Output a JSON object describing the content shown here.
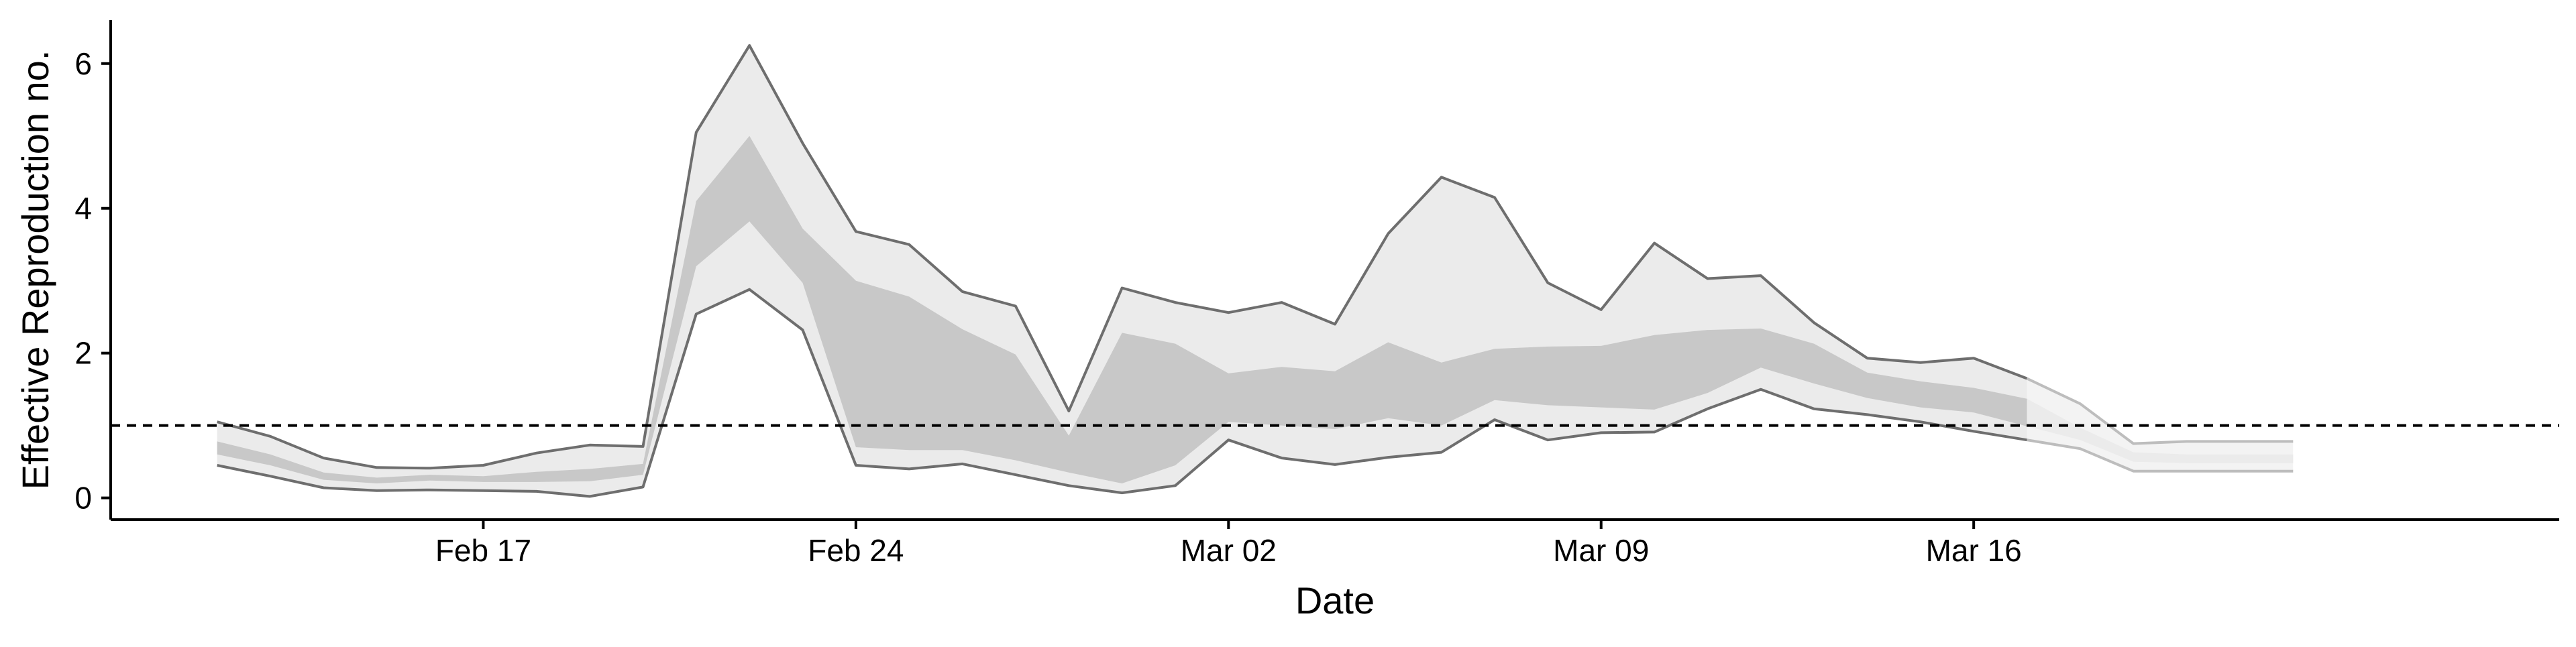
{
  "chart_data": {
    "type": "area",
    "xlabel": "Date",
    "ylabel": "Effective Reproduction no.",
    "x_tick_labels": [
      "Feb 17",
      "Feb 24",
      "Mar 02",
      "Mar 09",
      "Mar 16"
    ],
    "x_tick_dates": [
      "2020-02-17",
      "2020-02-24",
      "2020-03-02",
      "2020-03-09",
      "2020-03-16"
    ],
    "y_tick_labels": [
      "0",
      "2",
      "4",
      "6"
    ],
    "y_ticks": [
      0,
      2,
      4,
      6
    ],
    "xlim": [
      "2020-02-10",
      "2020-03-27"
    ],
    "ylim": [
      -0.3,
      6.6
    ],
    "reference_line": {
      "y": 1,
      "style": "dashed",
      "color": "#000000"
    },
    "grid": false,
    "legend": "none",
    "colors": {
      "outer_band": "#ebebeb",
      "inner_band": "#c8c8c8",
      "bound_line": "#6e6e6e",
      "tail_band": "#f3f3f3",
      "tail_line": "#bdbdbd"
    },
    "dates": [
      "2020-02-12",
      "2020-02-13",
      "2020-02-14",
      "2020-02-15",
      "2020-02-16",
      "2020-02-17",
      "2020-02-18",
      "2020-02-19",
      "2020-02-20",
      "2020-02-21",
      "2020-02-22",
      "2020-02-23",
      "2020-02-24",
      "2020-02-25",
      "2020-02-26",
      "2020-02-27",
      "2020-02-28",
      "2020-02-29",
      "2020-03-01",
      "2020-03-02",
      "2020-03-03",
      "2020-03-04",
      "2020-03-05",
      "2020-03-06",
      "2020-03-07",
      "2020-03-08",
      "2020-03-09",
      "2020-03-10",
      "2020-03-11",
      "2020-03-12",
      "2020-03-13",
      "2020-03-14",
      "2020-03-15",
      "2020-03-16",
      "2020-03-17",
      "2020-03-18",
      "2020-03-19",
      "2020-03-20",
      "2020-03-21",
      "2020-03-22"
    ],
    "series": [
      {
        "name": "",
        "band": "outer_upper",
        "values": [
          1.05,
          0.85,
          0.55,
          0.42,
          0.41,
          0.45,
          0.62,
          0.73,
          0.71,
          5.05,
          6.25,
          4.9,
          3.68,
          3.5,
          2.85,
          2.65,
          1.2,
          2.9,
          2.7,
          2.56,
          2.7,
          2.4,
          3.65,
          4.43,
          4.15,
          2.97,
          2.6,
          3.52,
          3.03,
          3.07,
          2.42,
          1.93,
          1.87,
          1.93,
          1.65,
          1.3,
          0.75,
          0.78,
          0.78,
          0.78
        ]
      },
      {
        "name": "",
        "band": "inner_upper",
        "values": [
          0.78,
          0.6,
          0.35,
          0.28,
          0.32,
          0.3,
          0.36,
          0.4,
          0.47,
          4.1,
          5.0,
          3.72,
          3.0,
          2.78,
          2.33,
          1.98,
          0.86,
          2.28,
          2.13,
          1.72,
          1.81,
          1.75,
          2.15,
          1.87,
          2.06,
          2.09,
          2.1,
          2.25,
          2.32,
          2.34,
          2.13,
          1.73,
          1.61,
          1.52,
          1.37,
          0.97,
          0.63,
          0.6,
          0.6,
          0.6
        ]
      },
      {
        "name": "",
        "band": "inner_lower",
        "values": [
          0.6,
          0.45,
          0.25,
          0.2,
          0.24,
          0.22,
          0.22,
          0.23,
          0.32,
          3.2,
          3.82,
          2.97,
          0.7,
          0.66,
          0.66,
          0.52,
          0.35,
          0.2,
          0.45,
          1.05,
          1.0,
          0.95,
          1.1,
          1.0,
          1.35,
          1.28,
          1.25,
          1.22,
          1.45,
          1.8,
          1.58,
          1.38,
          1.25,
          1.18,
          0.99,
          0.8,
          0.5,
          0.48,
          0.48,
          0.48
        ]
      },
      {
        "name": "",
        "band": "outer_lower",
        "values": [
          0.45,
          0.3,
          0.14,
          0.1,
          0.11,
          0.1,
          0.09,
          0.02,
          0.15,
          2.54,
          2.88,
          2.32,
          0.45,
          0.4,
          0.47,
          0.32,
          0.17,
          0.07,
          0.17,
          0.8,
          0.55,
          0.46,
          0.56,
          0.63,
          1.08,
          0.8,
          0.9,
          0.91,
          1.23,
          1.5,
          1.23,
          1.15,
          1.05,
          0.92,
          0.8,
          0.68,
          0.37,
          0.37,
          0.37,
          0.37
        ]
      }
    ],
    "faded_from_index": 34
  }
}
